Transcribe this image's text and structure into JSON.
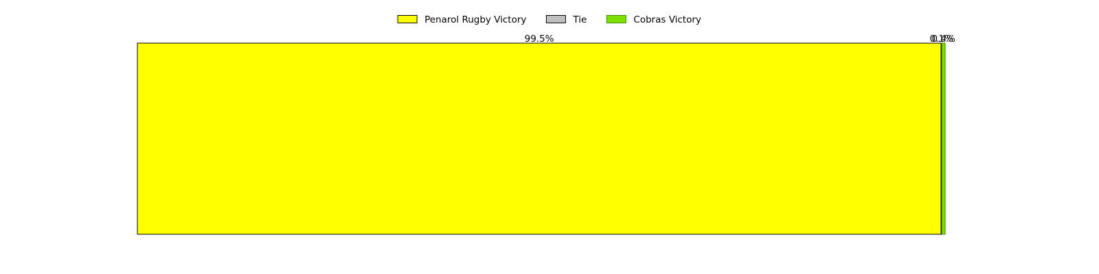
{
  "chart_data": {
    "type": "bar",
    "orientation": "horizontal",
    "stacked": true,
    "categories": [
      ""
    ],
    "series": [
      {
        "name": "Penarol Rugby Victory",
        "values": [
          99.5
        ],
        "label": "99.5%",
        "color": "#ffff00",
        "edge": "#000000"
      },
      {
        "name": "Tie",
        "values": [
          0.1
        ],
        "label": "0.1%",
        "color": "#c0c0c0",
        "edge": "#000000"
      },
      {
        "name": "Cobras Victory",
        "values": [
          0.4
        ],
        "label": "0.4%",
        "color": "#7fe000",
        "edge": "#3a8a00"
      }
    ],
    "xlim": [
      0,
      100
    ],
    "axes_visible": false,
    "grid": false,
    "legend_position": "top-center"
  }
}
